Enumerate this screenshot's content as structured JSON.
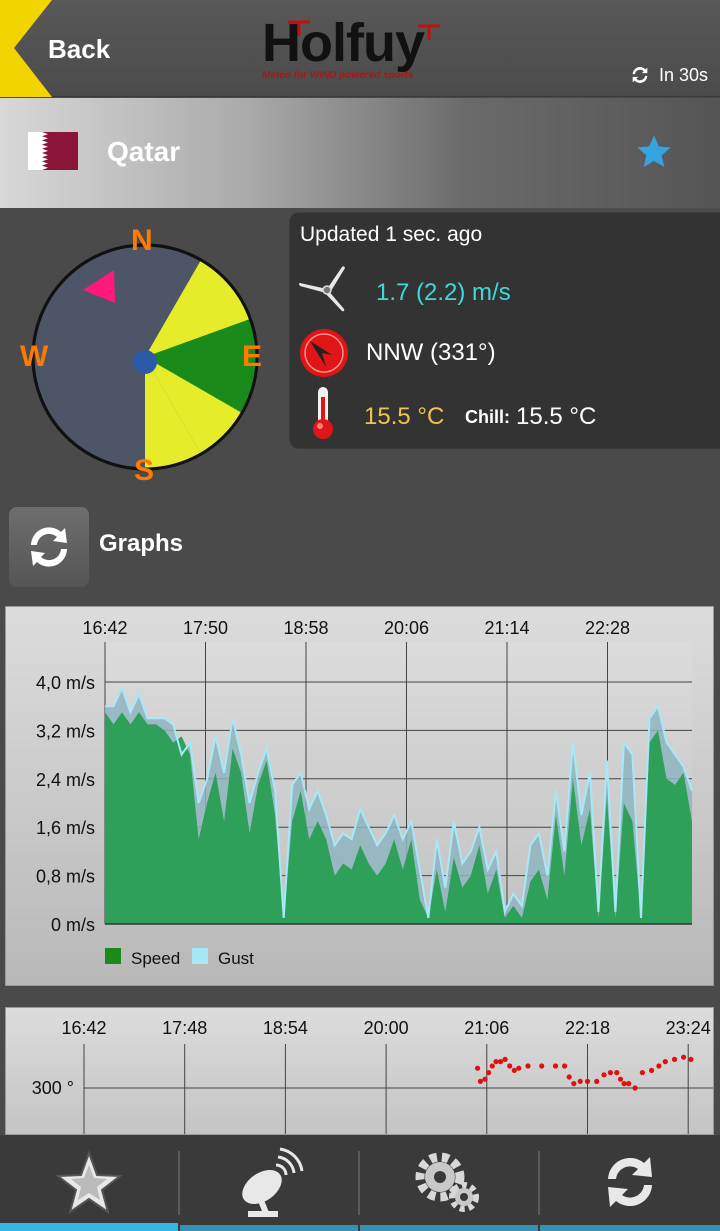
{
  "header": {
    "back_label": "Back",
    "logo_text": "Holfuy",
    "logo_tagline": "Meteo for WIND powered sports",
    "refresh_text": "In 30s"
  },
  "station": {
    "name": "Qatar",
    "favorite": true
  },
  "compass": {
    "north": "N",
    "south": "S",
    "east": "E",
    "west": "W",
    "wind_direction_deg": 331
  },
  "info": {
    "updated": "Updated 1 sec. ago",
    "wind_speed": "1.7 (2.2) m/s",
    "direction": "NNW (331°)",
    "temperature": "15.5 °C",
    "chill_label": "Chill:",
    "chill_value": "15.5 °C"
  },
  "graphs": {
    "label": "Graphs"
  },
  "colors": {
    "speed": "#2ea05a",
    "gust": "#a6e8f7",
    "accent": "#33b5e5",
    "direction_points": "#e01010"
  },
  "chart_data": [
    {
      "type": "area",
      "x_tick_labels": [
        "16:42",
        "17:50",
        "18:58",
        "20:06",
        "21:14",
        "22:28"
      ],
      "y_tick_labels": [
        "4,0 m/s",
        "3,2 m/s",
        "2,4 m/s",
        "1,6 m/s",
        "0,8 m/s",
        "0 m/s"
      ],
      "ylim": [
        0,
        4.0
      ],
      "legend": [
        "Speed",
        "Gust"
      ],
      "series": [
        {
          "name": "Speed",
          "values": [
            3.5,
            3.3,
            3.5,
            3.3,
            3.5,
            3.3,
            3.3,
            3.2,
            3.0,
            3.1,
            2.8,
            1.4,
            2.0,
            2.5,
            1.7,
            2.9,
            2.5,
            1.5,
            2.3,
            2.7,
            1.8,
            0.1,
            1.7,
            2.2,
            1.4,
            1.7,
            1.4,
            0.8,
            1.0,
            0.9,
            1.3,
            1.0,
            0.8,
            1.0,
            1.4,
            0.9,
            1.4,
            0.4,
            0.1,
            0.9,
            0.2,
            1.1,
            0.6,
            0.8,
            1.3,
            0.5,
            0.9,
            0.1,
            0.3,
            0.1,
            0.7,
            0.9,
            0.4,
            1.8,
            0.8,
            2.4,
            1.3,
            1.9,
            0.1,
            2.1,
            0.1,
            2.0,
            1.7,
            0.1,
            3.0,
            3.2,
            2.4,
            2.3,
            2.5,
            1.7
          ]
        },
        {
          "name": "Gust",
          "values": [
            3.6,
            3.6,
            3.9,
            3.5,
            3.8,
            3.4,
            3.4,
            3.4,
            3.3,
            2.8,
            3.0,
            2.0,
            2.4,
            3.1,
            2.5,
            3.4,
            2.8,
            2.0,
            2.5,
            2.9,
            2.2,
            0.1,
            2.3,
            2.5,
            1.9,
            2.2,
            1.8,
            1.3,
            1.5,
            1.4,
            1.9,
            1.6,
            1.3,
            1.5,
            1.8,
            1.4,
            1.7,
            0.9,
            0.1,
            1.4,
            0.6,
            1.7,
            1.0,
            1.2,
            1.6,
            0.9,
            1.2,
            0.2,
            0.5,
            0.3,
            1.3,
            1.5,
            0.8,
            2.2,
            1.2,
            3.0,
            1.8,
            2.5,
            0.2,
            2.7,
            0.2,
            3.0,
            2.8,
            0.1,
            3.4,
            3.6,
            3.0,
            2.8,
            2.6,
            2.2
          ]
        }
      ]
    },
    {
      "type": "scatter",
      "x_tick_labels": [
        "16:42",
        "17:48",
        "18:54",
        "20:00",
        "21:06",
        "22:18",
        "23:24"
      ],
      "y_tick_labels": [
        "300 °"
      ],
      "series": [
        {
          "name": "Direction",
          "values": [
            [
              21.0,
              309
            ],
            [
              21.03,
              303
            ],
            [
              21.08,
              304
            ],
            [
              21.12,
              307
            ],
            [
              21.16,
              310
            ],
            [
              21.2,
              312
            ],
            [
              21.25,
              312
            ],
            [
              21.3,
              313
            ],
            [
              21.35,
              310
            ],
            [
              21.4,
              308
            ],
            [
              21.45,
              309
            ],
            [
              21.55,
              310
            ],
            [
              21.7,
              310
            ],
            [
              21.85,
              310
            ],
            [
              21.95,
              310
            ],
            [
              22.0,
              305
            ],
            [
              22.05,
              302
            ],
            [
              22.12,
              303
            ],
            [
              22.2,
              303
            ],
            [
              22.3,
              303
            ],
            [
              22.38,
              306
            ],
            [
              22.45,
              307
            ],
            [
              22.52,
              307
            ],
            [
              22.56,
              304
            ],
            [
              22.6,
              302
            ],
            [
              22.65,
              302
            ],
            [
              22.72,
              300
            ],
            [
              22.8,
              307
            ],
            [
              22.9,
              308
            ],
            [
              22.98,
              310
            ],
            [
              23.05,
              312
            ],
            [
              23.15,
              313
            ],
            [
              23.25,
              314
            ],
            [
              23.33,
              313
            ]
          ]
        }
      ]
    }
  ],
  "bottom_nav": {
    "items": [
      "favorites",
      "stations",
      "settings",
      "refresh"
    ]
  }
}
